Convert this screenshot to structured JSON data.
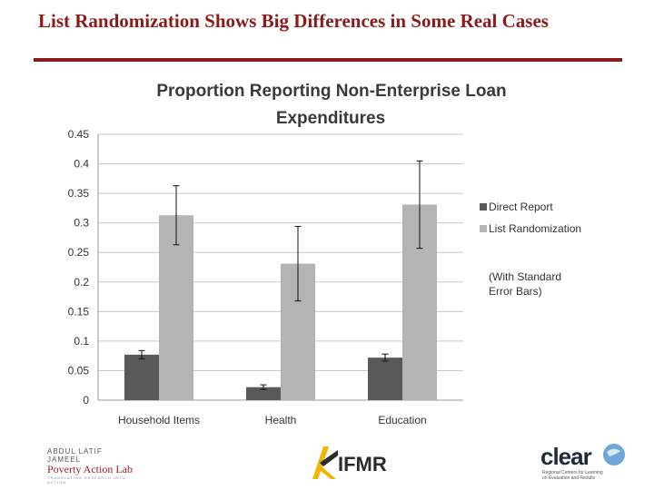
{
  "slide": {
    "title": "List Randomization Shows Big Differences in Some Real Cases"
  },
  "chart_data": {
    "type": "bar",
    "title_lines": [
      "Proportion Reporting Non-Enterprise Loan",
      "Expenditures"
    ],
    "categories": [
      "Household Items",
      "Health",
      "Education"
    ],
    "series": [
      {
        "name": "Direct Report",
        "values": [
          0.077,
          0.022,
          0.072
        ],
        "errors": [
          0.007,
          0.004,
          0.006
        ],
        "color": "#595959"
      },
      {
        "name": "List Randomization",
        "values": [
          0.313,
          0.231,
          0.331
        ],
        "errors": [
          0.05,
          0.063,
          0.074
        ],
        "color": "#b4b4b4"
      }
    ],
    "ylim": [
      0,
      0.45
    ],
    "yticks": [
      0,
      0.05,
      0.1,
      0.15,
      0.2,
      0.25,
      0.3,
      0.35,
      0.4,
      0.45
    ],
    "ytick_labels": [
      "0",
      "0.05",
      "0.1",
      "0.15",
      "0.2",
      "0.25",
      "0.3",
      "0.35",
      "0.4",
      "0.45"
    ],
    "grid": true,
    "legend_position": "right",
    "legend_note_lines": [
      "(With Standard",
      "Error Bars)"
    ]
  },
  "logos": {
    "jpal_line1": "ABDUL LATIF JAMEEL",
    "jpal_line2": "Poverty Action Lab",
    "jpal_line3": "TRANSLATING RESEARCH INTO ACTION",
    "ifmr": "IFMR",
    "clear": "clear",
    "clear_sub": "Regional Centers for Learning on Evaluation and Results"
  }
}
